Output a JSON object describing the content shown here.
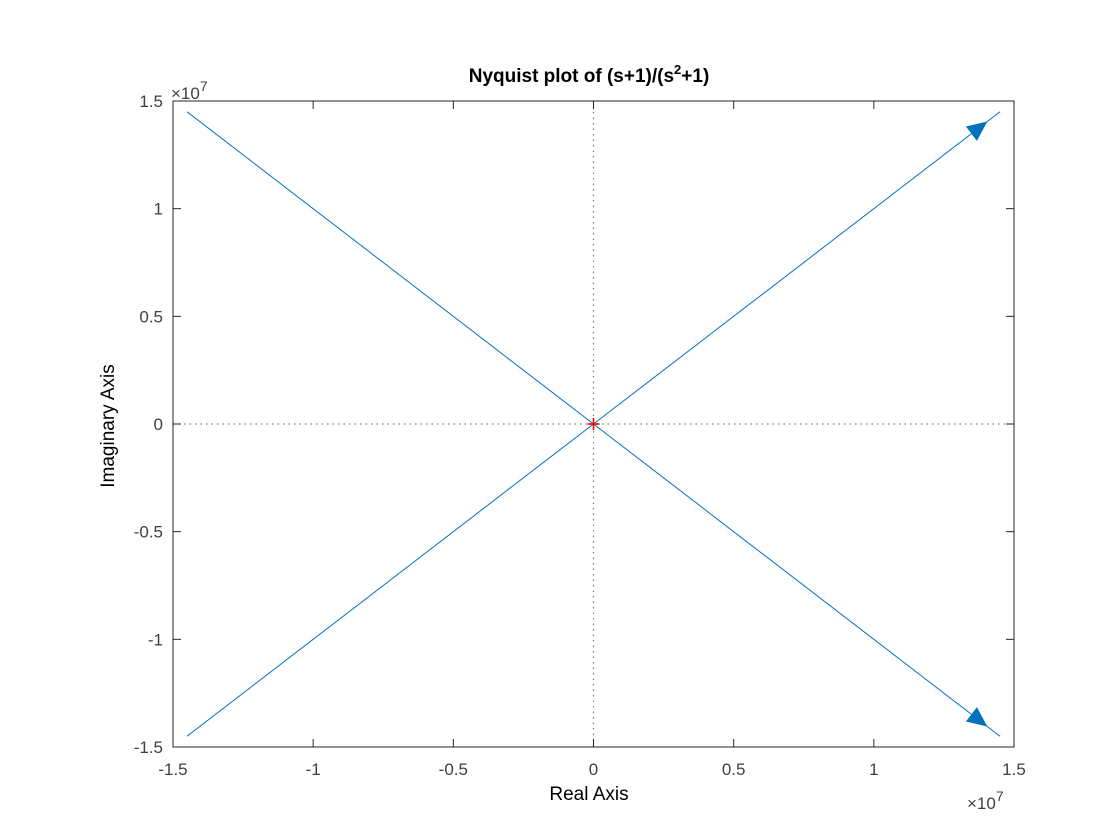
{
  "chart_data": {
    "type": "line",
    "title_main": "Nyquist plot of (s+1)/(s",
    "title_sup": "2",
    "title_end": "+1)",
    "xlabel": "Real Axis",
    "ylabel": "Imaginary Axis",
    "x_multiplier": "×10",
    "x_multiplier_exp": "7",
    "y_multiplier": "×10",
    "y_multiplier_exp": "7",
    "xlim": [
      -15000000.0,
      15000000.0
    ],
    "ylim": [
      -15000000.0,
      15000000.0
    ],
    "x_ticks": [
      -15000000.0,
      -10000000.0,
      -5000000.0,
      0,
      5000000.0,
      10000000.0,
      15000000.0
    ],
    "x_tick_labels": [
      "-1.5",
      "-1",
      "-0.5",
      "0",
      "0.5",
      "1",
      "1.5"
    ],
    "y_ticks": [
      -15000000.0,
      -10000000.0,
      -5000000.0,
      0,
      5000000.0,
      10000000.0,
      15000000.0
    ],
    "y_tick_labels": [
      "-1.5",
      "-1",
      "-0.5",
      "0",
      "0.5",
      "1",
      "1.5"
    ],
    "grid": false,
    "critical_point": {
      "x": -1,
      "y": 0
    },
    "series": [
      {
        "x": [
          -14500000.0,
          0,
          14500000.0
        ],
        "y": [
          14500000.0,
          0,
          -14500000.0
        ],
        "arrow_at_end": true
      },
      {
        "x": [
          -14500000.0,
          0,
          14500000.0
        ],
        "y": [
          -14500000.0,
          0,
          14500000.0
        ],
        "arrow_at_end": true
      }
    ],
    "colors": {
      "line": "#0072BD",
      "critical": "#FF0000",
      "axis": "#262626"
    }
  }
}
